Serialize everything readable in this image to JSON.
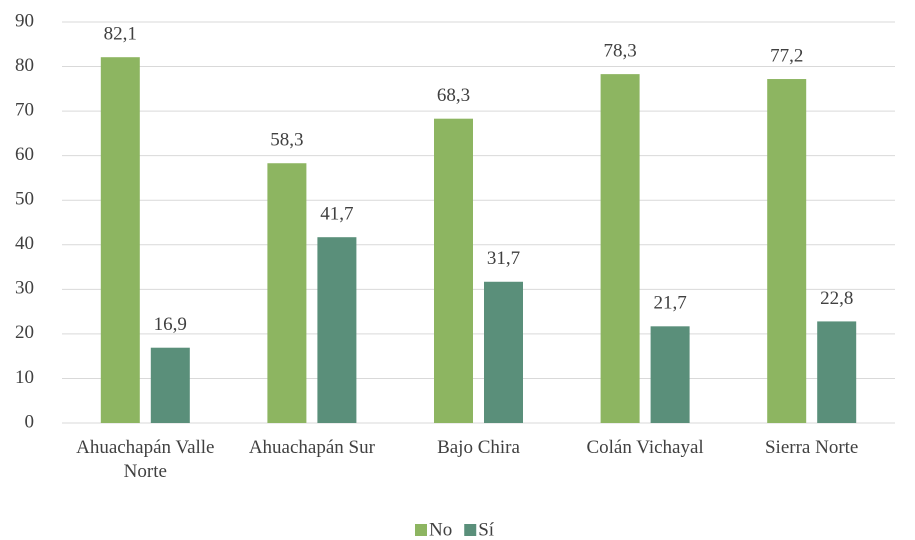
{
  "chart_data": {
    "type": "bar",
    "categories": [
      "Ahuachapán Valle Norte",
      "Ahuachapán Sur",
      "Bajo Chira",
      "Colán Vichayal",
      "Sierra Norte"
    ],
    "series": [
      {
        "name": "No",
        "color": "#8db561",
        "values": [
          82.1,
          58.3,
          68.3,
          78.3,
          77.2
        ],
        "value_labels": [
          "82,1",
          "58,3",
          "68,3",
          "78,3",
          "77,2"
        ]
      },
      {
        "name": "Sí",
        "color": "#5a8f7a",
        "values": [
          16.9,
          41.7,
          31.7,
          21.7,
          22.8
        ],
        "value_labels": [
          "16,9",
          "41,7",
          "31,7",
          "21,7",
          "22,8"
        ]
      }
    ],
    "ylim": [
      0,
      90
    ],
    "yticks": [
      0,
      10,
      20,
      30,
      40,
      50,
      60,
      70,
      80,
      90
    ],
    "grid": true,
    "legend": "bottom"
  }
}
